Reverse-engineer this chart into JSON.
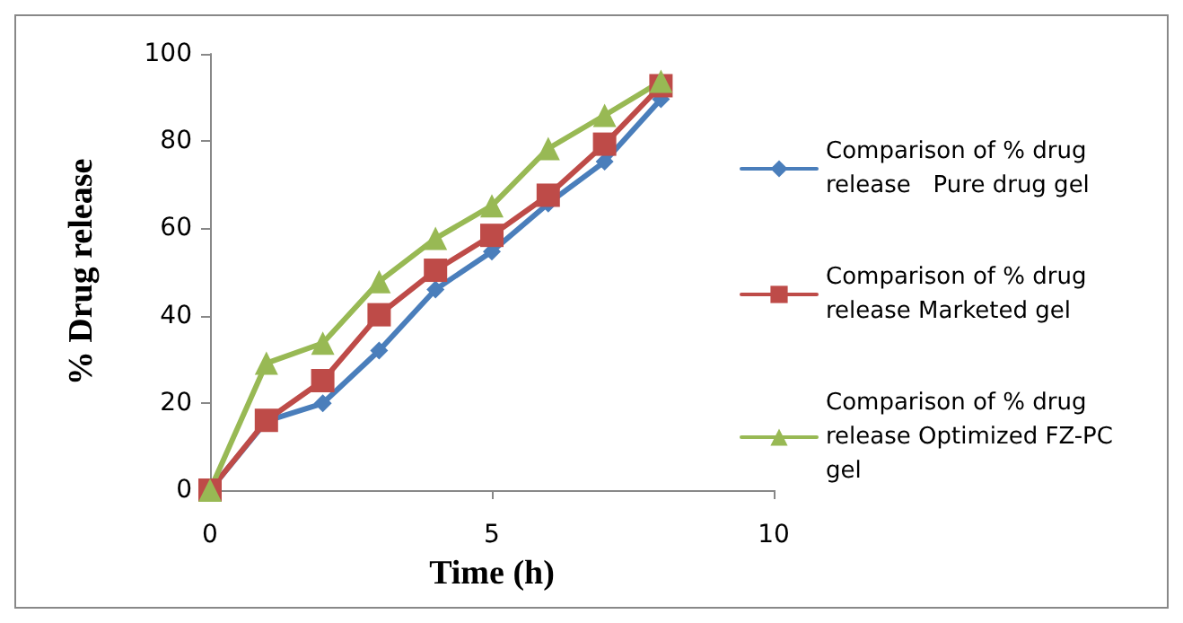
{
  "chart_data": {
    "type": "line",
    "xlabel": "Time (h)",
    "ylabel": "% Drug release",
    "x": [
      0,
      1,
      2,
      3,
      4,
      5,
      6,
      7,
      8
    ],
    "series": [
      {
        "name": "Comparison of % drug release   Pure drug gel",
        "color": "#4a7ebb",
        "marker": "diamond",
        "values": [
          0,
          15.8,
          19.9,
          32,
          46,
          54.7,
          65.7,
          75.3,
          89.6
        ]
      },
      {
        "name": "Comparison of % drug release Marketed gel",
        "color": "#be4b48",
        "marker": "square",
        "values": [
          0,
          16,
          25.1,
          40.2,
          50.4,
          58.4,
          67.6,
          79.3,
          92.7
        ]
      },
      {
        "name": "Comparison of % drug release Optimized FZ-PC gel",
        "color": "#98b954",
        "marker": "triangle",
        "values": [
          0,
          29.1,
          33.7,
          47.8,
          57.7,
          65.2,
          78.3,
          85.9,
          93.7
        ]
      }
    ],
    "xlim": [
      0,
      10
    ],
    "xticks": [
      0,
      5,
      10
    ],
    "ylim": [
      0,
      100
    ],
    "yticks": [
      0,
      20,
      40,
      60,
      80,
      100
    ],
    "grid": false,
    "legend": "right",
    "line_style": "solid"
  }
}
